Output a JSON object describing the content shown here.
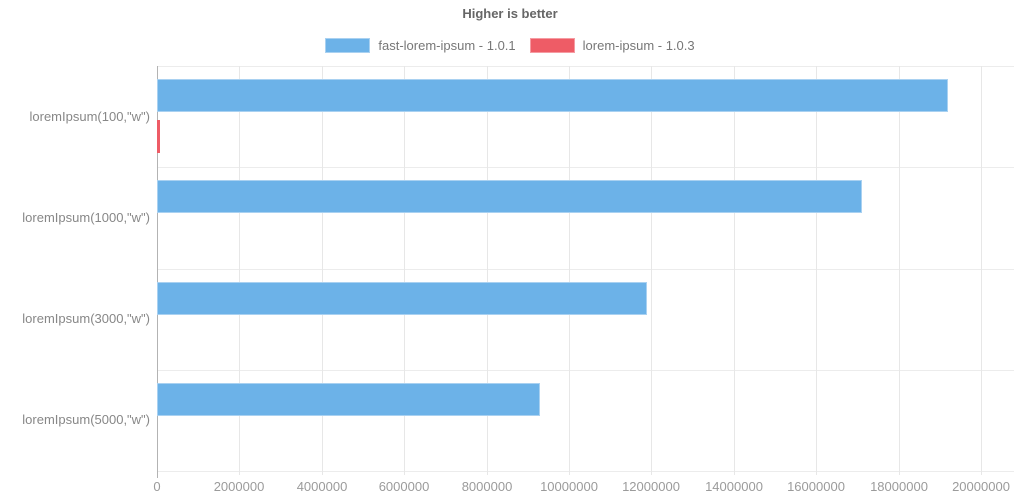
{
  "header": {
    "title": "Higher is better"
  },
  "legend": {
    "position": "top",
    "items": [
      {
        "label": "fast-lorem-ipsum - 1.0.1",
        "color": "#6cb2e8"
      },
      {
        "label": "lorem-ipsum - 1.0.3",
        "color": "#ee5c66"
      }
    ]
  },
  "chart_data": {
    "type": "bar",
    "orientation": "horizontal",
    "title": "Higher is better",
    "categories": [
      "loremIpsum(100,\"w\")",
      "loremIpsum(1000,\"w\")",
      "loremIpsum(3000,\"w\")",
      "loremIpsum(5000,\"w\")"
    ],
    "series": [
      {
        "name": "fast-lorem-ipsum - 1.0.1",
        "color": "#6cb2e8",
        "border_color": "#a9d1f1",
        "values": [
          19200000,
          17100000,
          11900000,
          9300000
        ]
      },
      {
        "name": "lorem-ipsum - 1.0.3",
        "color": "#ee5c66",
        "border_color": "#f59ba2",
        "values": [
          65000,
          0,
          0,
          0
        ]
      }
    ],
    "xlabel": "",
    "ylabel": "",
    "xlim": [
      0,
      20000000
    ],
    "x_ticks": [
      0,
      2000000,
      4000000,
      6000000,
      8000000,
      10000000,
      12000000,
      14000000,
      16000000,
      18000000,
      20000000
    ],
    "x_tick_labels": [
      "0",
      "2000000",
      "4000000",
      "6000000",
      "8000000",
      "10000000",
      "12000000",
      "14000000",
      "16000000",
      "18000000",
      "20000000"
    ],
    "grid": true,
    "legend_position": "top"
  }
}
